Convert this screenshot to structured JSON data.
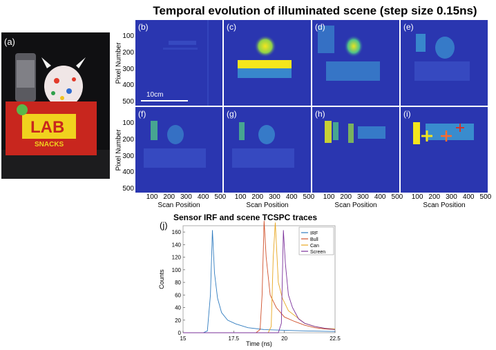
{
  "figure": {
    "title": "Temporal evolution of illuminated scene (step size 0.15ns)",
    "photo_label": "(a)",
    "panel_labels": [
      "(b)",
      "(c)",
      "(d)",
      "(e)",
      "(f)",
      "(g)",
      "(h)",
      "(i)"
    ],
    "scale_bar_label": "10cm",
    "heatmap_axes": {
      "ylabel": "Pixel Number",
      "xlabel": "Scan Position",
      "yticks": [
        "100",
        "200",
        "300",
        "400",
        "500"
      ],
      "xticks": [
        "100",
        "200",
        "300",
        "400",
        "500"
      ]
    },
    "colors": {
      "background": "#2a36b0",
      "mid": "#3fa9d8",
      "high": "#f4e61c",
      "cross_yellow": "#f2e21e",
      "cross_orange": "#ff6a2a",
      "cross_red": "#d0342c"
    }
  },
  "chart_data": {
    "type": "line",
    "panel_label": "(j)",
    "title": "Sensor IRF and scene TCSPC traces",
    "xlabel": "Time (ns)",
    "ylabel": "Counts",
    "xlim": [
      15,
      22.5
    ],
    "ylim": [
      0,
      170
    ],
    "xticks": [
      "15",
      "17.5",
      "20",
      "22.5"
    ],
    "yticks": [
      "0",
      "20",
      "40",
      "60",
      "80",
      "100",
      "120",
      "140",
      "160"
    ],
    "legend": "top-right",
    "series": [
      {
        "name": "IRF",
        "color": "#2f7bbf",
        "x": [
          15,
          16.0,
          16.2,
          16.35,
          16.45,
          16.55,
          16.7,
          16.9,
          17.2,
          17.6,
          18.2,
          19.0,
          20.0,
          21.0,
          22.5
        ],
        "y": [
          0,
          0,
          3,
          60,
          163,
          95,
          55,
          32,
          20,
          14,
          8,
          5,
          4,
          3,
          2
        ]
      },
      {
        "name": "Bull",
        "color": "#d0502a",
        "x": [
          15,
          18.6,
          18.8,
          18.9,
          19.0,
          19.1,
          19.3,
          19.6,
          20.0,
          20.5,
          21.0,
          21.5,
          22.0,
          22.5
        ],
        "y": [
          0,
          0,
          5,
          60,
          178,
          120,
          60,
          40,
          25,
          18,
          12,
          8,
          6,
          5
        ]
      },
      {
        "name": "Can",
        "color": "#e8a61e",
        "x": [
          15,
          19.2,
          19.35,
          19.45,
          19.55,
          19.7,
          19.9,
          20.2,
          20.6,
          21.0,
          21.5,
          22.0,
          22.5
        ],
        "y": [
          0,
          0,
          10,
          120,
          175,
          80,
          55,
          35,
          25,
          15,
          10,
          7,
          6
        ]
      },
      {
        "name": "Screen",
        "color": "#7a2f9a",
        "x": [
          15,
          19.7,
          19.85,
          19.95,
          20.05,
          20.2,
          20.4,
          20.7,
          21.0,
          21.5,
          22.0,
          22.5
        ],
        "y": [
          0,
          0,
          15,
          163,
          110,
          60,
          40,
          22,
          15,
          10,
          7,
          5
        ]
      }
    ]
  }
}
